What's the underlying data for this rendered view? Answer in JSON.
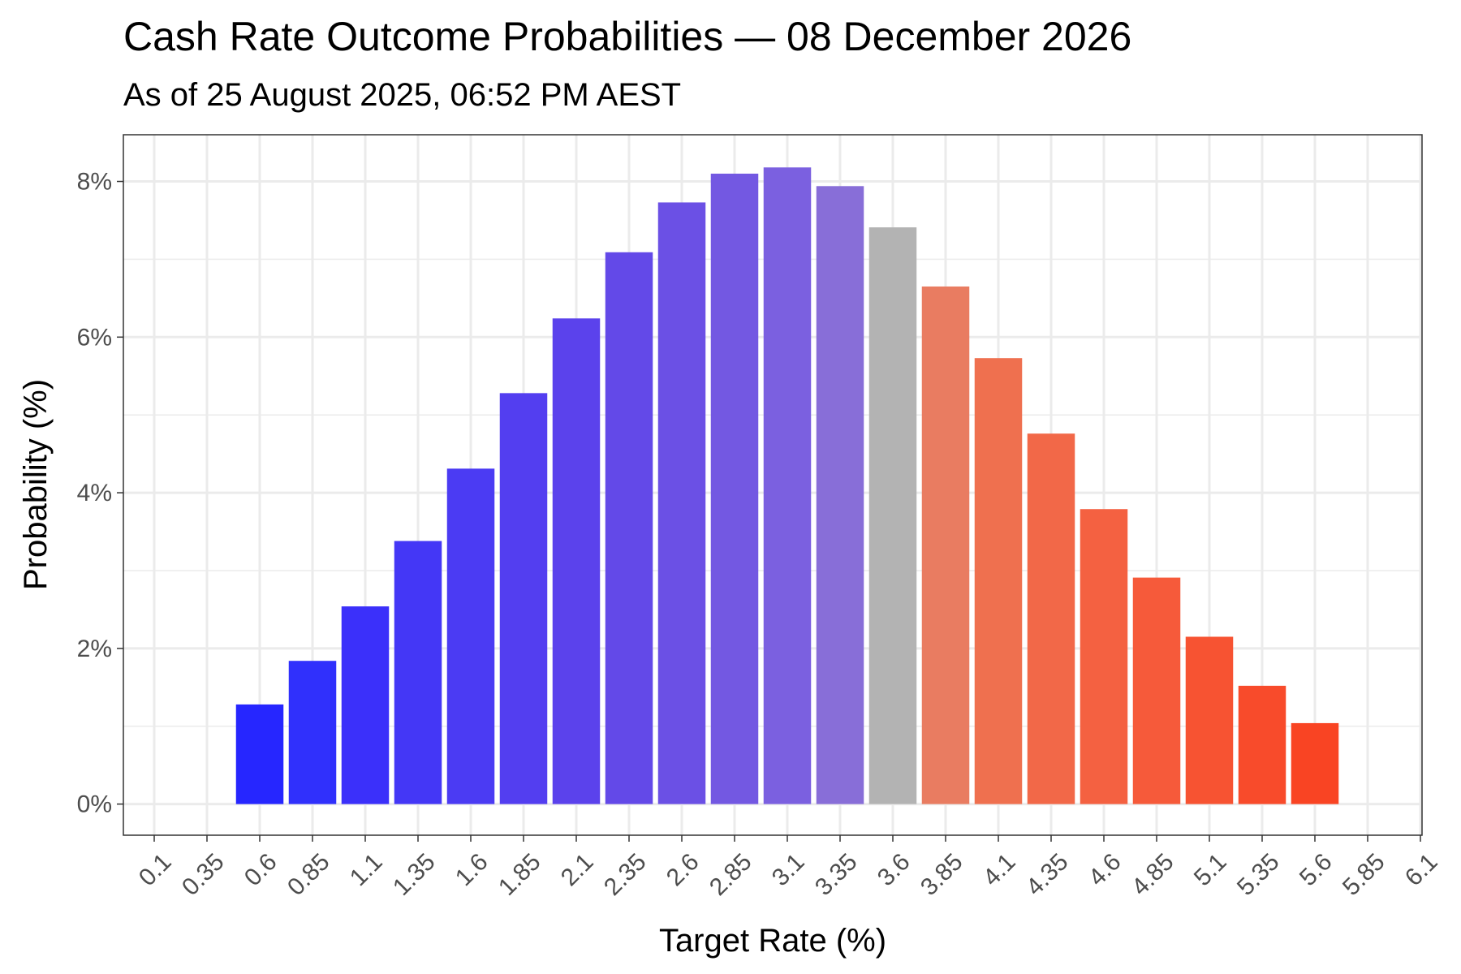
{
  "chart_data": {
    "type": "bar",
    "title": "Cash Rate Outcome Probabilities — 08 December 2026",
    "subtitle": "As of 25 August 2025, 06:52 PM AEST",
    "xlabel": "Target Rate (%)",
    "ylabel": "Probability (%)",
    "categories": [
      "0.1",
      "0.35",
      "0.6",
      "0.85",
      "1.1",
      "1.35",
      "1.6",
      "1.85",
      "2.1",
      "2.35",
      "2.6",
      "2.85",
      "3.1",
      "3.35",
      "3.6",
      "3.85",
      "4.1",
      "4.35",
      "4.6",
      "4.85",
      "5.1",
      "5.35",
      "5.6",
      "5.85",
      "6.1"
    ],
    "values": [
      null,
      null,
      1.28,
      1.84,
      2.54,
      3.38,
      4.31,
      5.28,
      6.24,
      7.09,
      7.73,
      8.1,
      8.18,
      7.94,
      7.41,
      6.65,
      5.73,
      4.76,
      3.79,
      2.91,
      2.15,
      1.52,
      1.04,
      null,
      null
    ],
    "bar_colors": [
      "",
      "",
      "#2626ff",
      "#3030fc",
      "#3b30fa",
      "#4437f6",
      "#4b3bf3",
      "#533ef0",
      "#5b42ec",
      "#6349e8",
      "#6b50e5",
      "#7358e2",
      "#7b60e0",
      "#886ed8",
      "#b3b3b3",
      "#e97c61",
      "#ef704f",
      "#f26848",
      "#f46141",
      "#f65a3a",
      "#f75332",
      "#f84b2b",
      "#f94423",
      "",
      ""
    ],
    "y_tick_labels": [
      "0%",
      "2%",
      "4%",
      "6%",
      "8%"
    ],
    "y_ticks": [
      0,
      2,
      4,
      6,
      8
    ],
    "ylim": [
      -0.4,
      8.6
    ],
    "grid": true,
    "legend": "none"
  }
}
